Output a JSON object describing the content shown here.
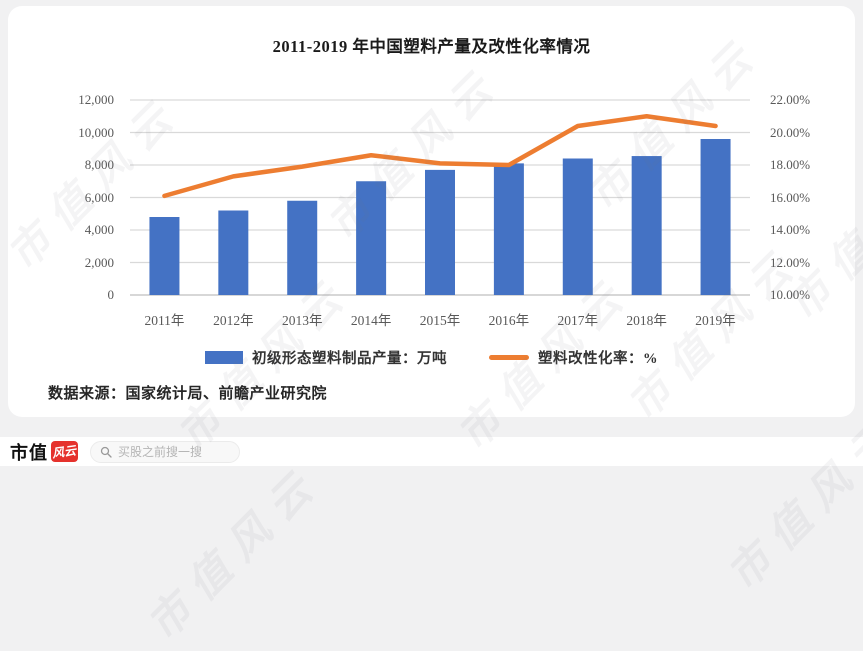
{
  "watermark": {
    "text": "市值风云"
  },
  "chart_data": {
    "type": "bar",
    "combo": "bar+line",
    "title": "2011-2019 年中国塑料产量及改性化率情况",
    "source": "数据来源：国家统计局、前瞻产业研究院",
    "categories": [
      "2011年",
      "2012年",
      "2013年",
      "2014年",
      "2015年",
      "2016年",
      "2017年",
      "2018年",
      "2019年"
    ],
    "series": [
      {
        "name": "初级形态塑料制品产量：万吨",
        "type": "bar",
        "axis": "left",
        "color": "#4472C4",
        "values": [
          4800,
          5200,
          5800,
          7000,
          7700,
          8100,
          8400,
          8550,
          9600
        ]
      },
      {
        "name": "塑料改性化率：%",
        "type": "line",
        "axis": "right",
        "color": "#ED7D31",
        "values": [
          16.1,
          17.3,
          17.9,
          18.6,
          18.1,
          18.0,
          20.4,
          21.0,
          20.4
        ]
      }
    ],
    "left_axis": {
      "min": 0,
      "max": 12000,
      "ticks": [
        "12,000",
        "10,000",
        "8,000",
        "6,000",
        "4,000",
        "2,000",
        "0"
      ]
    },
    "right_axis": {
      "min": 10,
      "max": 22,
      "ticks": [
        "22.00%",
        "20.00%",
        "18.00%",
        "16.00%",
        "14.00%",
        "12.00%",
        "10.00%"
      ]
    },
    "grid": true,
    "gridline_color": "#d9d9d9",
    "baseline_color": "#bfbfbf",
    "legend_position": "bottom"
  },
  "bottom_bar": {
    "brand_text": "市值",
    "logo_text": "风云",
    "brand_red": "#e5322d",
    "search_placeholder": "买股之前搜一搜"
  }
}
